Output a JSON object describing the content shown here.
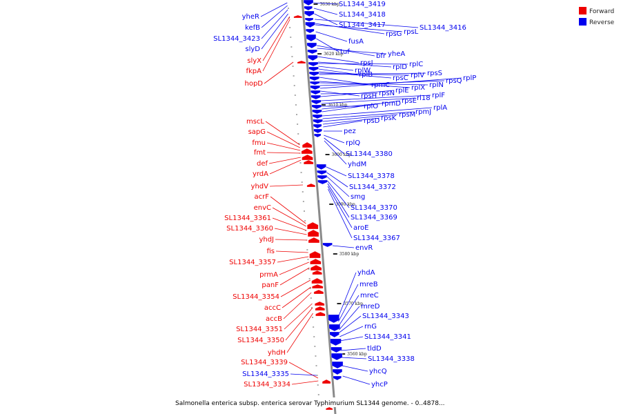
{
  "caption": "Salmonella enterica subsp. enterica serovar Typhimurium SL1344 genome. - 0..4878...",
  "legend": {
    "forward_label": "Forward",
    "reverse_label": "Reverse",
    "forward_color": "#ee0000",
    "reverse_color": "#0000ee"
  },
  "axis": {
    "line_color": "#8a8a8a",
    "ticks": [
      "3630 kbp",
      "3620 kbp",
      "3610 kbp",
      "3600 kbp",
      "3590 kbp",
      "3580 kbp",
      "3570 kbp",
      "3560 kbp"
    ]
  },
  "reverse_labels": [
    "SL1344_3419",
    "SL1344_3418",
    "SL1344_3417",
    "SL1344_3416",
    "rpsG",
    "rpsL",
    "fusA",
    "tuf",
    "bfr",
    "yheA",
    "rpsJ",
    "rplD",
    "rplC",
    "rplW",
    "rplB",
    "rpsC",
    "rplV",
    "rpsS",
    "rpmC",
    "rplX",
    "rpIN",
    "rpsQ",
    "rplP",
    "rpsH",
    "rpsN",
    "rplE",
    "rplF",
    "rl18",
    "rplO",
    "rpmD",
    "rpsE",
    "rplA",
    "rpmJ",
    "rpsM",
    "rpsK",
    "rpsD",
    "pez",
    "rplQ",
    "SL1344_3380",
    "yhdM",
    "SL1344_3378",
    "SL1344_3372",
    "smg",
    "SL1344_3370",
    "SL1344_3369",
    "aroE",
    "SL1344_3367",
    "envR",
    "yhdA",
    "mreB",
    "mreC",
    "mreD",
    "SL1344_3343",
    "rnG",
    "SL1344_3341",
    "tldD",
    "SL1344_3338",
    "yhcQ",
    "yhcP"
  ],
  "forward_labels": [
    "mscL",
    "sapG",
    "fmu",
    "fmt",
    "def",
    "yrdA",
    "yhdV",
    "acrF",
    "envC",
    "SL1344_3361",
    "SL1344_3360",
    "yhdJ",
    "fis",
    "SL1344_3357",
    "prmA",
    "panF",
    "SL1344_3354",
    "accC",
    "accB",
    "SL1344_3351",
    "SL1344_3350",
    "yhdH",
    "SL1344_3339",
    "SL1344_3334",
    "slyX",
    "fkpA",
    "hopD"
  ],
  "left_blue_labels": [
    "yheR",
    "kefB",
    "SL1344_3423",
    "slyD",
    "SL1344_3335"
  ]
}
